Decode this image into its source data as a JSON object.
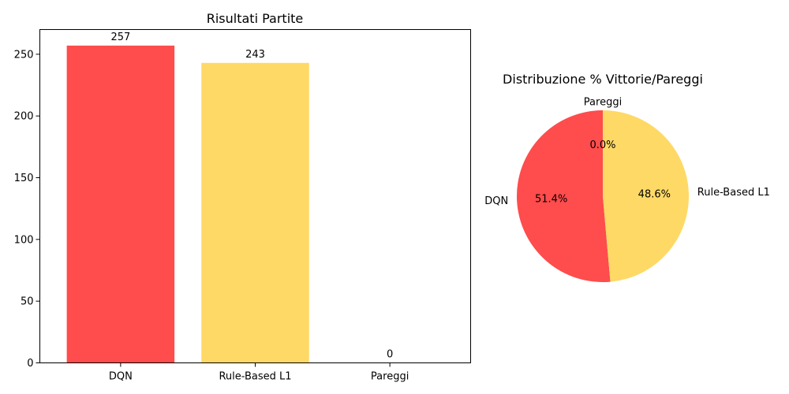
{
  "chart_data": [
    {
      "type": "bar",
      "title": "Risultati Partite",
      "categories": [
        "DQN",
        "Rule-Based L1",
        "Pareggi"
      ],
      "values": [
        257,
        243,
        0
      ],
      "data_labels": [
        "257",
        "243",
        "0"
      ],
      "colors": [
        "#ff4c4c",
        "#ffd966",
        "#cccccc"
      ],
      "ylim": [
        0,
        270
      ],
      "yticks": [
        0,
        50,
        100,
        150,
        200,
        250
      ],
      "grid": false,
      "xlabel": "",
      "ylabel": ""
    },
    {
      "type": "pie",
      "title": "Distribuzione % Vittorie/Pareggi",
      "labels": [
        "DQN",
        "Rule-Based L1",
        "Pareggi"
      ],
      "values": [
        51.4,
        48.6,
        0.0
      ],
      "pct_labels": [
        "51.4%",
        "48.6%",
        "0.0%"
      ],
      "colors": [
        "#ff4c4c",
        "#ffd966",
        "#cccccc"
      ],
      "start_angle": 90,
      "direction": "counterclockwise"
    }
  ]
}
